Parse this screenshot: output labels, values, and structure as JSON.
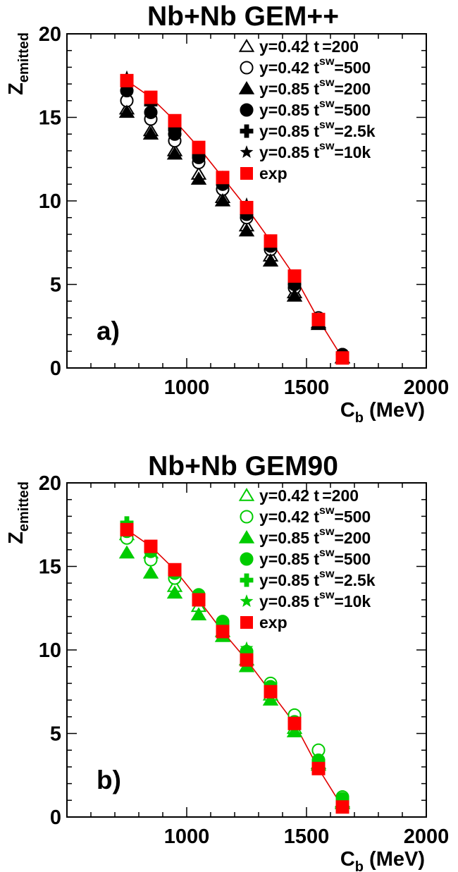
{
  "colors": {
    "exp": "#ff0000",
    "line": "#e00000",
    "black": "#000000",
    "green": "#00cc00"
  },
  "chart_data": [
    {
      "type": "scatter",
      "title": "Nb+Nb GEM++",
      "panel_label": "a)",
      "marker_color": "#000000",
      "xlabel_main": "C",
      "xlabel_sub": "b",
      "xlabel_unit": " (MeV)",
      "ylabel_main": "Z",
      "ylabel_sub": "emitted",
      "xlim": [
        500,
        2000
      ],
      "ylim": [
        0,
        20
      ],
      "x_ticks": [
        "1000",
        "1500",
        "2000"
      ],
      "y_ticks": [
        "0",
        "5",
        "10",
        "15",
        "20"
      ],
      "legend_placement": "top-right",
      "x": [
        750,
        850,
        950,
        1050,
        1150,
        1250,
        1350,
        1450,
        1550,
        1650
      ],
      "series": [
        {
          "name": "y=0.42 t",
          "sup": "sw",
          "tail": "=200",
          "sup_only": true,
          "marker": "triangle-open",
          "values": [
            15.5,
            14.2,
            13.0,
            11.6,
            10.2,
            8.5,
            6.7,
            4.5,
            2.7,
            0.6
          ]
        },
        {
          "name": "y=0.42 t",
          "sup": "sw",
          "tail": "=500",
          "marker": "circle-open",
          "values": [
            16.0,
            14.9,
            13.6,
            12.3,
            10.7,
            9.0,
            7.1,
            4.8,
            3.0,
            0.8
          ]
        },
        {
          "name": "y=0.85 t",
          "sup": "sw",
          "tail": "=200",
          "marker": "triangle-filled",
          "values": [
            15.3,
            14.0,
            12.8,
            11.3,
            10.0,
            8.2,
            6.4,
            4.3,
            2.6,
            0.6
          ]
        },
        {
          "name": "y=0.85 t",
          "sup": "sw",
          "tail": "=500",
          "marker": "circle-filled",
          "values": [
            16.6,
            15.3,
            14.0,
            12.6,
            11.0,
            9.2,
            7.3,
            5.0,
            2.8,
            0.8
          ]
        },
        {
          "name": "y=0.85 t",
          "sup": "sw",
          "tail": "=2.5k",
          "marker": "cross",
          "values": [
            17.0,
            15.8,
            14.3,
            12.8,
            11.2,
            9.4,
            7.5,
            5.2,
            2.8,
            0.7
          ]
        },
        {
          "name": "y=0.85 t",
          "sup": "sw",
          "tail": "=10k",
          "marker": "star",
          "values": [
            17.4,
            16.1,
            14.6,
            13.0,
            11.4,
            9.8,
            7.6,
            5.3,
            2.9,
            0.7
          ]
        },
        {
          "name": "exp",
          "marker": "square",
          "is_exp": true,
          "values": [
            17.2,
            16.2,
            14.8,
            13.2,
            11.4,
            9.6,
            7.6,
            5.5,
            2.9,
            0.6
          ]
        }
      ]
    },
    {
      "type": "scatter",
      "title": "Nb+Nb GEM90",
      "panel_label": "b)",
      "marker_color": "#00cc00",
      "xlabel_main": "C",
      "xlabel_sub": "b",
      "xlabel_unit": " (MeV)",
      "ylabel_main": "Z",
      "ylabel_sub": "emitted",
      "xlim": [
        500,
        2000
      ],
      "ylim": [
        0,
        20
      ],
      "x_ticks": [
        "1000",
        "1500",
        "2000"
      ],
      "y_ticks": [
        "0",
        "5",
        "10",
        "15",
        "20"
      ],
      "legend_placement": "top-right",
      "x": [
        750,
        850,
        950,
        1050,
        1150,
        1250,
        1350,
        1450,
        1550,
        1650
      ],
      "series": [
        {
          "name": "y=0.42 t",
          "sup": "sw",
          "tail": "=200",
          "sup_only": true,
          "marker": "triangle-open",
          "values": [
            16.9,
            15.8,
            13.8,
            12.6,
            11.1,
            9.4,
            7.3,
            5.3,
            3.2,
            0.9
          ]
        },
        {
          "name": "y=0.42 t",
          "sup": "sw",
          "tail": "=500",
          "marker": "circle-open",
          "values": [
            16.7,
            15.4,
            14.3,
            13.0,
            11.6,
            9.9,
            8.0,
            6.1,
            4.0,
            1.2
          ]
        },
        {
          "name": "y=0.85 t",
          "sup": "sw",
          "tail": "=200",
          "marker": "triangle-filled",
          "values": [
            15.8,
            14.6,
            13.4,
            12.1,
            10.8,
            9.0,
            7.0,
            5.1,
            3.1,
            0.8
          ]
        },
        {
          "name": "y=0.85 t",
          "sup": "sw",
          "tail": "=500",
          "marker": "circle-filled",
          "values": [
            17.1,
            15.9,
            14.6,
            13.3,
            11.7,
            9.9,
            7.8,
            5.7,
            3.4,
            1.1
          ]
        },
        {
          "name": "y=0.85 t",
          "sup": "sw",
          "tail": "=2.5k",
          "marker": "cross",
          "values": [
            17.6,
            16.1,
            14.7,
            13.0,
            11.5,
            9.6,
            7.6,
            5.5,
            3.2,
            1.0
          ]
        },
        {
          "name": "y=0.85 t",
          "sup": "sw",
          "tail": "=10k",
          "marker": "star",
          "values": [
            17.4,
            16.0,
            14.6,
            13.1,
            11.6,
            10.1,
            7.7,
            5.6,
            3.3,
            1.0
          ]
        },
        {
          "name": "exp",
          "marker": "square",
          "is_exp": true,
          "values": [
            17.2,
            16.2,
            14.8,
            13.0,
            11.1,
            9.4,
            7.5,
            5.6,
            2.9,
            0.6
          ]
        }
      ]
    }
  ]
}
